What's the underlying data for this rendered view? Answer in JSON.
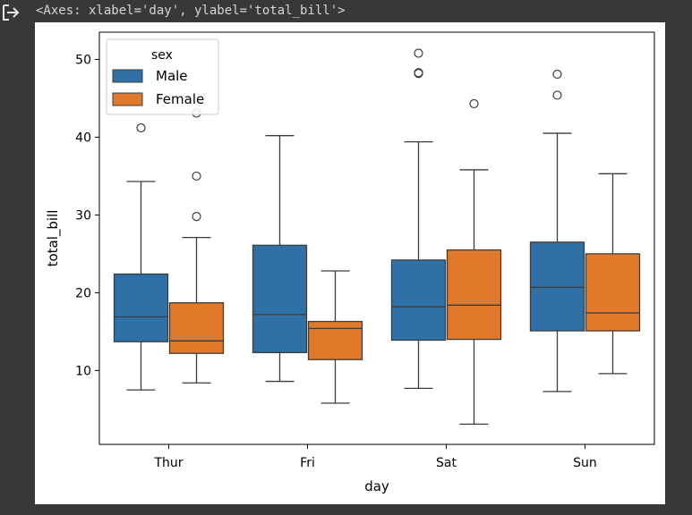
{
  "output": {
    "repr_text": "<Axes: xlabel='day', ylabel='total_bill'>"
  },
  "chart_data": {
    "type": "boxplot",
    "xlabel": "day",
    "ylabel": "total_bill",
    "categories": [
      "Thur",
      "Fri",
      "Sat",
      "Sun"
    ],
    "ylim": [
      0.5,
      53.5
    ],
    "yticks": [
      10,
      20,
      30,
      40,
      50
    ],
    "legend": {
      "title": "sex",
      "placement": "top-left"
    },
    "series": [
      {
        "name": "Male",
        "color": "#2f71a6",
        "boxes": [
          {
            "category": "Thur",
            "whisker_low": 7.5,
            "q1": 13.7,
            "median": 16.9,
            "q3": 22.4,
            "whisker_high": 34.3,
            "outliers": [
              41.2
            ]
          },
          {
            "category": "Fri",
            "whisker_low": 8.6,
            "q1": 12.3,
            "median": 17.2,
            "q3": 26.1,
            "whisker_high": 40.2,
            "outliers": []
          },
          {
            "category": "Sat",
            "whisker_low": 7.7,
            "q1": 13.9,
            "median": 18.2,
            "q3": 24.2,
            "whisker_high": 39.4,
            "outliers": [
              48.2,
              48.3,
              50.8
            ]
          },
          {
            "category": "Sun",
            "whisker_low": 7.3,
            "q1": 15.1,
            "median": 20.7,
            "q3": 26.5,
            "whisker_high": 40.5,
            "outliers": [
              45.4,
              48.1
            ]
          }
        ]
      },
      {
        "name": "Female",
        "color": "#e0792a",
        "boxes": [
          {
            "category": "Thur",
            "whisker_low": 8.4,
            "q1": 12.2,
            "median": 13.8,
            "q3": 18.7,
            "whisker_high": 27.1,
            "outliers": [
              29.8,
              35.0,
              43.1
            ]
          },
          {
            "category": "Fri",
            "whisker_low": 5.8,
            "q1": 11.4,
            "median": 15.4,
            "q3": 16.3,
            "whisker_high": 22.8,
            "outliers": []
          },
          {
            "category": "Sat",
            "whisker_low": 3.1,
            "q1": 14.0,
            "median": 18.4,
            "q3": 25.5,
            "whisker_high": 35.8,
            "outliers": [
              44.3
            ]
          },
          {
            "category": "Sun",
            "whisker_low": 9.6,
            "q1": 15.1,
            "median": 17.4,
            "q3": 25.0,
            "whisker_high": 35.3,
            "outliers": []
          }
        ]
      }
    ]
  }
}
